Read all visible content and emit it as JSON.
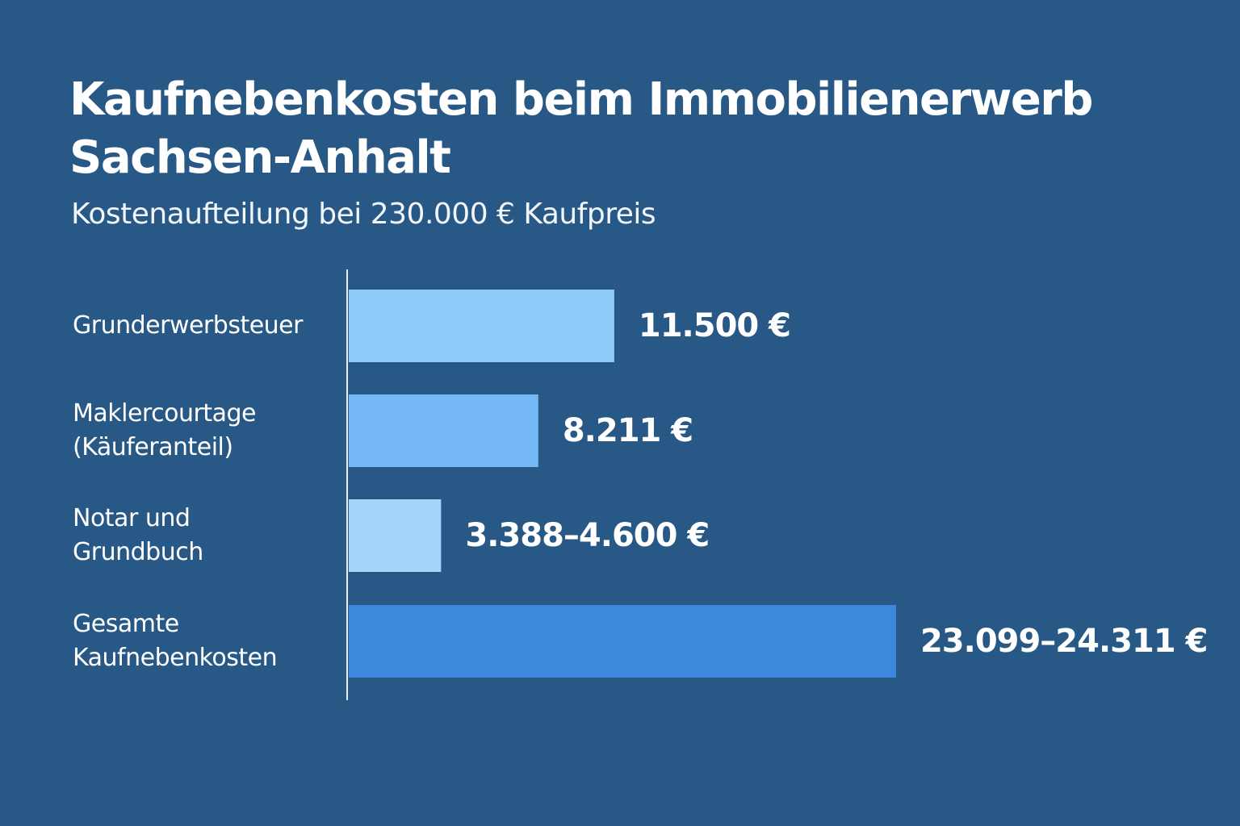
{
  "chart_data": {
    "type": "bar",
    "orientation": "horizontal",
    "title": "Kaufnebenkosten beim Immobilienerwerb\nSachsen-Anhalt",
    "subtitle": "Kostenaufteilung bei 230.000 € Kaufpreis",
    "categories": [
      "Grunderwerbsteuer",
      "Maklercourtage\n(Käuferanteil)",
      "Notar und\nGrundbuch",
      "Gesamte\nKaufnebenkosten"
    ],
    "values": [
      11500,
      8211,
      4000,
      23705
    ],
    "ranges": [
      null,
      null,
      [
        3388,
        4600
      ],
      [
        23099,
        24311
      ]
    ],
    "value_labels": [
      "11.500 €",
      "8.211 €",
      "3.388–4.600 €",
      "23.099–24.311 €"
    ],
    "bar_colors": [
      "#90caf9",
      "#74b8f5",
      "#a6d4fa",
      "#3b88dc"
    ],
    "xlim": [
      0,
      27000
    ],
    "grid": false,
    "legend": "none"
  }
}
